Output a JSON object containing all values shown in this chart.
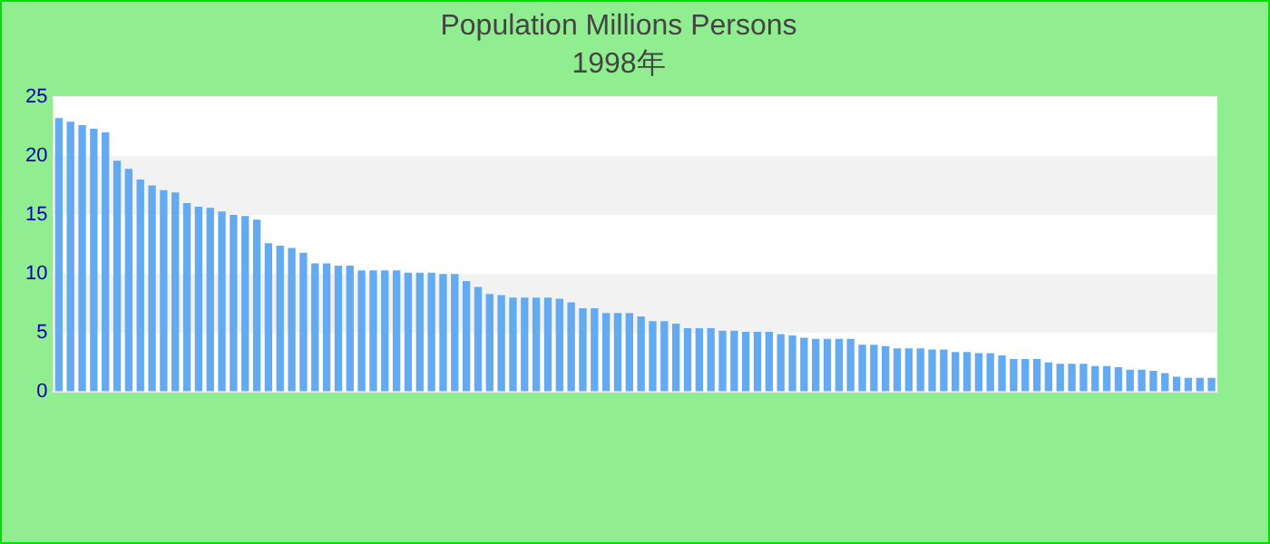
{
  "chart_data": {
    "type": "bar",
    "title": "Population Millions Persons",
    "subtitle": "1998年",
    "categories": [
      null,
      null,
      null,
      null,
      null,
      null,
      null,
      null,
      null,
      null,
      null,
      null,
      null,
      null,
      null,
      null,
      null,
      null,
      null,
      null,
      null,
      null,
      null,
      null,
      null,
      null,
      null,
      null,
      null,
      null,
      null,
      null,
      null,
      null,
      null,
      null,
      null,
      null,
      null,
      null,
      null,
      null,
      null,
      null,
      null,
      null,
      null,
      null,
      null,
      null,
      null,
      null,
      null,
      null,
      null,
      null,
      null,
      null,
      null,
      null,
      null,
      null,
      null,
      null,
      null,
      null,
      null,
      null,
      null,
      null,
      null,
      null,
      null,
      null,
      null,
      null,
      null,
      null,
      null,
      null,
      null,
      null,
      null,
      null,
      null,
      null,
      null,
      null,
      null,
      null,
      null,
      null,
      null,
      null,
      null,
      null,
      null,
      null,
      null,
      null
    ],
    "values": [
      23.2,
      22.9,
      22.6,
      22.3,
      22.0,
      19.6,
      18.9,
      18.0,
      17.5,
      17.1,
      16.9,
      16.0,
      15.7,
      15.6,
      15.3,
      15.0,
      14.9,
      14.6,
      12.6,
      12.4,
      12.2,
      11.8,
      10.9,
      10.9,
      10.7,
      10.7,
      10.3,
      10.3,
      10.3,
      10.3,
      10.1,
      10.1,
      10.1,
      10.0,
      10.0,
      9.4,
      8.9,
      8.3,
      8.2,
      8.0,
      8.0,
      8.0,
      8.0,
      7.9,
      7.6,
      7.1,
      7.1,
      6.7,
      6.7,
      6.7,
      6.4,
      6.0,
      6.0,
      5.8,
      5.4,
      5.4,
      5.4,
      5.2,
      5.2,
      5.1,
      5.1,
      5.1,
      4.9,
      4.8,
      4.6,
      4.5,
      4.5,
      4.5,
      4.5,
      4.0,
      4.0,
      3.9,
      3.7,
      3.7,
      3.7,
      3.6,
      3.6,
      3.4,
      3.4,
      3.3,
      3.3,
      3.1,
      2.8,
      2.8,
      2.8,
      2.5,
      2.4,
      2.4,
      2.4,
      2.2,
      2.2,
      2.1,
      1.9,
      1.9,
      1.8,
      1.6,
      1.3,
      1.2,
      1.2,
      1.2
    ],
    "color": "#64aaf0",
    "ylim": [
      0,
      25
    ],
    "yticks": [
      0,
      5,
      10,
      15,
      20,
      25
    ],
    "grid": "y"
  }
}
